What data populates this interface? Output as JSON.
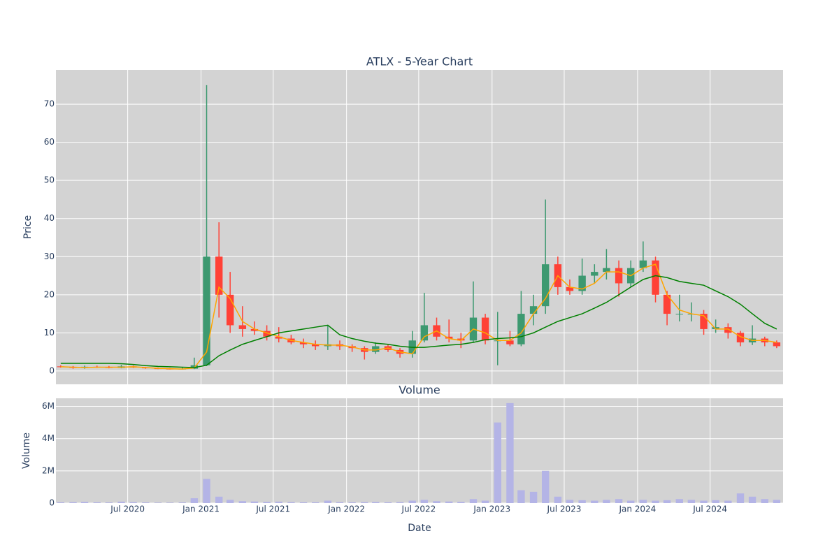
{
  "chart_data": {
    "type": "candlestick",
    "title": "ATLX - 5-Year Chart",
    "y_label": "Price",
    "x_label": "Date",
    "volume_title": "Volume",
    "volume_label": "Volume",
    "xlim": [
      "2020-01-03",
      "2024-12-31"
    ],
    "xticks": [
      {
        "value": "2020-07-01",
        "label": "Jul 2020"
      },
      {
        "value": "2021-01-01",
        "label": "Jan 2021"
      },
      {
        "value": "2021-07-01",
        "label": "Jul 2021"
      },
      {
        "value": "2022-01-01",
        "label": "Jan 2022"
      },
      {
        "value": "2022-07-01",
        "label": "Jul 2022"
      },
      {
        "value": "2023-01-01",
        "label": "Jan 2023"
      },
      {
        "value": "2023-07-01",
        "label": "Jul 2023"
      },
      {
        "value": "2024-01-01",
        "label": "Jan 2024"
      },
      {
        "value": "2024-07-01",
        "label": "Jul 2024"
      }
    ],
    "ylim": [
      -3.5,
      79
    ],
    "yticks": [
      0,
      10,
      20,
      30,
      40,
      50,
      60,
      70
    ],
    "volume_ylim": [
      0,
      6500000
    ],
    "volume_yticks": [
      {
        "value": 0,
        "label": "0"
      },
      {
        "value": 2000000,
        "label": "2M"
      },
      {
        "value": 4000000,
        "label": "4M"
      },
      {
        "value": 6000000,
        "label": "6M"
      }
    ],
    "grid": true,
    "increasing_color": "#3d9970",
    "decreasing_color": "#ff4136",
    "volume_color": "#b4b4e6",
    "x": [
      "2020-01",
      "2020-02",
      "2020-03",
      "2020-04",
      "2020-05",
      "2020-06",
      "2020-07",
      "2020-08",
      "2020-09",
      "2020-10",
      "2020-11",
      "2020-12",
      "2021-01",
      "2021-02",
      "2021-03",
      "2021-04",
      "2021-05",
      "2021-06",
      "2021-07",
      "2021-08",
      "2021-09",
      "2021-10",
      "2021-11",
      "2021-12",
      "2022-01",
      "2022-02",
      "2022-03",
      "2022-04",
      "2022-05",
      "2022-06",
      "2022-07",
      "2022-08",
      "2022-09",
      "2022-10",
      "2022-11",
      "2022-12",
      "2023-01",
      "2023-02",
      "2023-03",
      "2023-04",
      "2023-05",
      "2023-06",
      "2023-07",
      "2023-08",
      "2023-09",
      "2023-10",
      "2023-11",
      "2023-12",
      "2024-01",
      "2024-02",
      "2024-03",
      "2024-04",
      "2024-05",
      "2024-06",
      "2024-07",
      "2024-08",
      "2024-09",
      "2024-10",
      "2024-11",
      "2024-12"
    ],
    "open": [
      1.2,
      1.0,
      0.8,
      1.1,
      1.0,
      0.8,
      1.2,
      0.9,
      0.7,
      0.6,
      0.5,
      0.6,
      1.5,
      30,
      20,
      12,
      11,
      10.5,
      9,
      8.5,
      7.5,
      7,
      6.5,
      7,
      6.5,
      6,
      5,
      6.5,
      5.5,
      4.5,
      8,
      12,
      9,
      8.5,
      8,
      14,
      8,
      8,
      7,
      15,
      17,
      28,
      22,
      21,
      25,
      26,
      27,
      23,
      27,
      29,
      20,
      15,
      15,
      15,
      11,
      11.5,
      10,
      7.5,
      8.5,
      7.5
    ],
    "high": [
      1.5,
      1.3,
      1.4,
      1.4,
      1.3,
      1.6,
      1.4,
      1.1,
      0.9,
      0.8,
      0.9,
      3.5,
      75,
      39,
      26,
      17,
      13,
      12,
      11.5,
      9.5,
      8.5,
      8,
      12,
      8,
      7,
      6.5,
      7.5,
      7,
      6,
      10.5,
      20.5,
      14,
      13.5,
      10,
      23.5,
      15,
      15.5,
      10.5,
      21,
      20,
      45,
      30,
      24,
      29.5,
      28,
      32,
      29,
      29,
      34,
      30,
      21,
      20,
      18,
      16,
      13.5,
      12.5,
      10.5,
      12,
      9,
      8
    ],
    "low": [
      0.9,
      0.6,
      0.6,
      0.8,
      0.7,
      0.7,
      0.8,
      0.6,
      0.5,
      0.4,
      0.4,
      0.5,
      1.3,
      14,
      10,
      9,
      9.5,
      8,
      7.5,
      7,
      6,
      5.5,
      5.5,
      5.5,
      5,
      3,
      4.5,
      5,
      3.5,
      3.5,
      7.5,
      8,
      7.5,
      6,
      7.5,
      7,
      1.5,
      6.5,
      6.5,
      12,
      15,
      20,
      20,
      20,
      23,
      24,
      19.5,
      22,
      26,
      18,
      12,
      13,
      13,
      9.5,
      10,
      8.5,
      6.5,
      6.8,
      6.5,
      6
    ],
    "close": [
      1.0,
      0.8,
      1.1,
      1.0,
      0.8,
      1.2,
      0.9,
      0.7,
      0.6,
      0.5,
      0.6,
      1.5,
      30,
      20,
      12,
      11,
      10.5,
      9,
      8.5,
      7.5,
      7,
      6.5,
      7,
      6.5,
      6,
      5,
      6.5,
      5.5,
      4.5,
      8,
      12,
      9,
      8.5,
      8,
      14,
      8,
      8,
      7,
      15,
      17,
      28,
      22,
      21,
      25,
      26,
      27,
      23,
      27,
      29,
      20,
      15,
      15,
      15,
      11,
      11.5,
      10,
      7.5,
      8.5,
      7.5,
      6.5
    ],
    "lines": [
      {
        "color": "#ffa500",
        "values": [
          1.1,
          1.0,
          0.9,
          1.0,
          1.0,
          1.0,
          1.1,
          0.9,
          0.7,
          0.6,
          0.5,
          0.8,
          5,
          22,
          19,
          13,
          11,
          10,
          9,
          8,
          7.5,
          7,
          6.8,
          6.8,
          6.3,
          5.5,
          5.5,
          6,
          5,
          4.5,
          9,
          10.5,
          8.5,
          8,
          11,
          10,
          8,
          8,
          10,
          15,
          19,
          25,
          22,
          21.5,
          23,
          26,
          26,
          25,
          27,
          28,
          20,
          16,
          15,
          14.5,
          11,
          11,
          9,
          8,
          8,
          7.5
        ]
      },
      {
        "color": "#008000",
        "values": [
          2.0,
          2.0,
          2.0,
          2.0,
          2.0,
          1.9,
          1.7,
          1.4,
          1.2,
          1.1,
          1.0,
          0.9,
          1.5,
          4,
          5.5,
          7,
          8,
          9,
          10,
          10.5,
          11,
          11.5,
          12,
          9.5,
          8.5,
          7.8,
          7.3,
          7,
          6.5,
          6.2,
          6.2,
          6.5,
          6.8,
          7,
          7.5,
          8.2,
          8.5,
          8.7,
          9,
          10,
          11.5,
          13,
          14,
          15,
          16.5,
          18,
          20,
          22,
          24,
          25,
          24.5,
          23.5,
          23,
          22.5,
          21,
          19.5,
          17.5,
          15,
          12.5,
          11
        ]
      }
    ],
    "volume": [
      50000,
      60000,
      80000,
      50000,
      40000,
      90000,
      60000,
      40000,
      30000,
      30000,
      40000,
      300000,
      1500000,
      400000,
      200000,
      120000,
      100000,
      80000,
      90000,
      60000,
      50000,
      50000,
      150000,
      60000,
      50000,
      60000,
      70000,
      50000,
      60000,
      150000,
      200000,
      120000,
      100000,
      80000,
      250000,
      150000,
      5000000,
      6200000,
      800000,
      700000,
      2000000,
      400000,
      200000,
      180000,
      150000,
      200000,
      250000,
      150000,
      200000,
      150000,
      180000,
      250000,
      200000,
      150000,
      180000,
      150000,
      600000,
      400000,
      250000,
      200000
    ]
  }
}
